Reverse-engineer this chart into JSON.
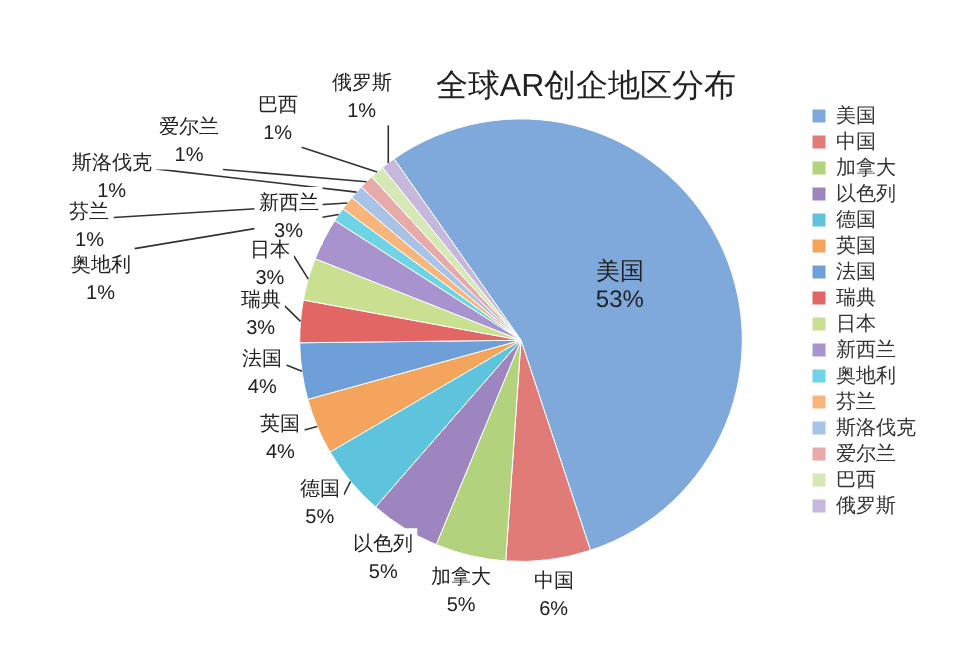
{
  "chart_data": {
    "type": "pie",
    "title": "全球AR创企地区分布",
    "categories": [
      "美国",
      "中国",
      "加拿大",
      "以色列",
      "德国",
      "英国",
      "法国",
      "瑞典",
      "日本",
      "新西兰",
      "奥地利",
      "芬兰",
      "斯洛伐克",
      "爱尔兰",
      "巴西",
      "俄罗斯"
    ],
    "values": [
      53,
      6,
      5,
      5,
      5,
      4,
      4,
      3,
      3,
      3,
      1,
      1,
      1,
      1,
      1,
      1
    ],
    "value_labels": [
      "53%",
      "6%",
      "5%",
      "5%",
      "5%",
      "4%",
      "4%",
      "3%",
      "3%",
      "3%",
      "1%",
      "1%",
      "1%",
      "1%",
      "1%",
      "1%"
    ],
    "colors": [
      "#7fa8db",
      "#e07b78",
      "#b3d27e",
      "#9d86bf",
      "#5ec3dc",
      "#f5a45e",
      "#6f9fd8",
      "#e26663",
      "#c8e08f",
      "#a893cf",
      "#6fd3e6",
      "#f8b67c",
      "#a8c3e6",
      "#e8aaa8",
      "#d6e8b5",
      "#c5b8dc"
    ],
    "legend": "right"
  }
}
